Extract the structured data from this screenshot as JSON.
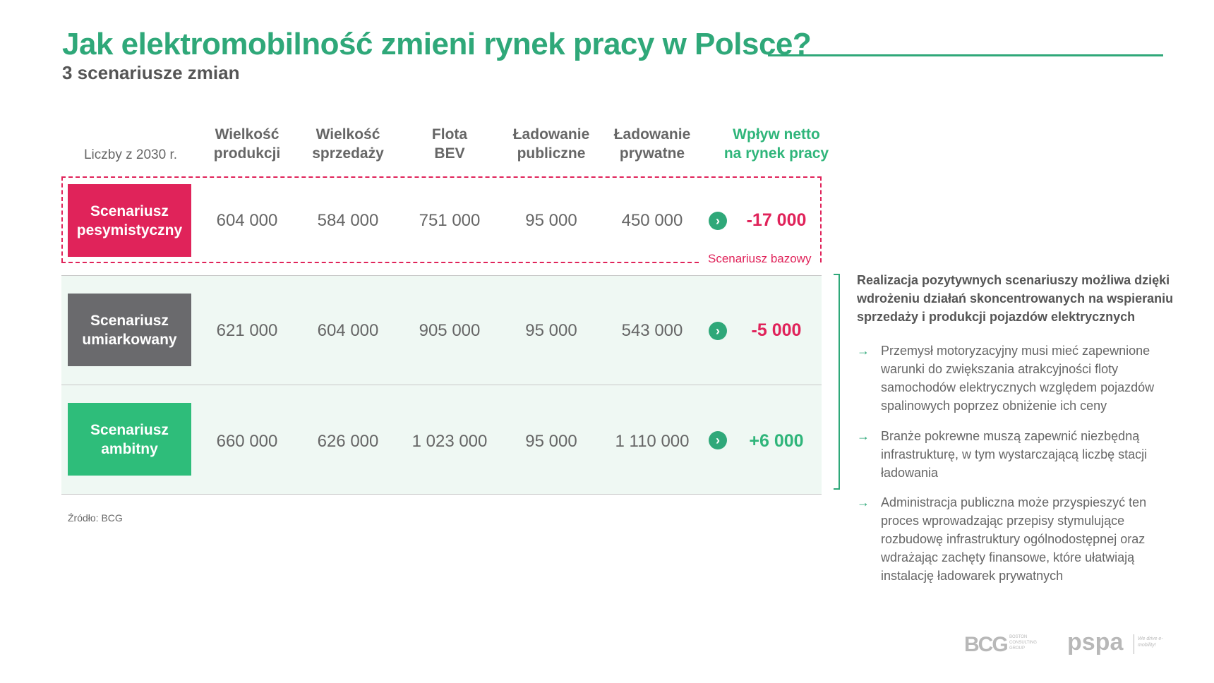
{
  "header": {
    "title": "Jak elektromobilność zmieni rynek pracy w Polsce?",
    "subtitle": "3 scenariusze zmian"
  },
  "table": {
    "note": "Liczby z 2030 r.",
    "columns": [
      [
        "Wielkość",
        "produkcji"
      ],
      [
        "Wielkość",
        "sprzedaży"
      ],
      [
        "Flota",
        "BEV"
      ],
      [
        "Ładowanie",
        "publiczne"
      ],
      [
        "Ładowanie",
        "prywatne"
      ],
      [
        "Wpływ netto",
        "na rynek pracy"
      ]
    ],
    "base_label": "Scenariusz bazowy",
    "rows": [
      {
        "name": [
          "Scenariusz",
          "pesymistyczny"
        ],
        "values": [
          "604 000",
          "584 000",
          "751 000",
          "95 000",
          "450 000"
        ],
        "net": "-17 000",
        "color": "#e0235a",
        "net_color": "#e0235a"
      },
      {
        "name": [
          "Scenariusz",
          "umiarkowany"
        ],
        "values": [
          "621 000",
          "604 000",
          "905 000",
          "95 000",
          "543 000"
        ],
        "net": "-5 000",
        "color": "#6a6a6d",
        "net_color": "#e0235a"
      },
      {
        "name": [
          "Scenariusz",
          "ambitny"
        ],
        "values": [
          "660 000",
          "626 000",
          "1 023 000",
          "95 000",
          "1 110 000"
        ],
        "net": "+6 000",
        "color": "#2ebd7a",
        "net_color": "#2fb57a"
      }
    ],
    "arrow_icon": "chevron-right-circle-icon"
  },
  "source": "Źródło: BCG",
  "side_panel": {
    "heading": "Realizacja pozytywnych scenariuszy możliwa dzięki wdrożeniu działań skoncentrowanych na wspieraniu sprzedaży i produkcji pojazdów elektrycznych",
    "arrow": "→",
    "bullets": [
      "Przemysł motoryzacyjny musi mieć zapewnione warunki do zwiększania atrakcyjności floty samochodów elektrycznych względem pojazdów spalinowych poprzez obniżenie ich ceny",
      "Branże pokrewne muszą zapewnić niezbędną infrastrukturę, w tym wystarczającą liczbę stacji ładowania",
      "Administracja publiczna może przyspieszyć ten proces wprowadzając przepisy stymulujące rozbudowę infrastruktury ogólnodostępnej oraz wdrażając zachęty finansowe, które ułatwiają instalację ładowarek prywatnych"
    ]
  },
  "logos": {
    "bcg": "BCG",
    "bcg_sub": "BOSTON CONSULTING GROUP",
    "pspa": "pspa",
    "pspa_tag": "We drive e-mobility!"
  },
  "colors": {
    "accent_green": "#2fa879",
    "pink": "#e0235a",
    "grey": "#6a6a6d",
    "band": "#eff8f3"
  }
}
